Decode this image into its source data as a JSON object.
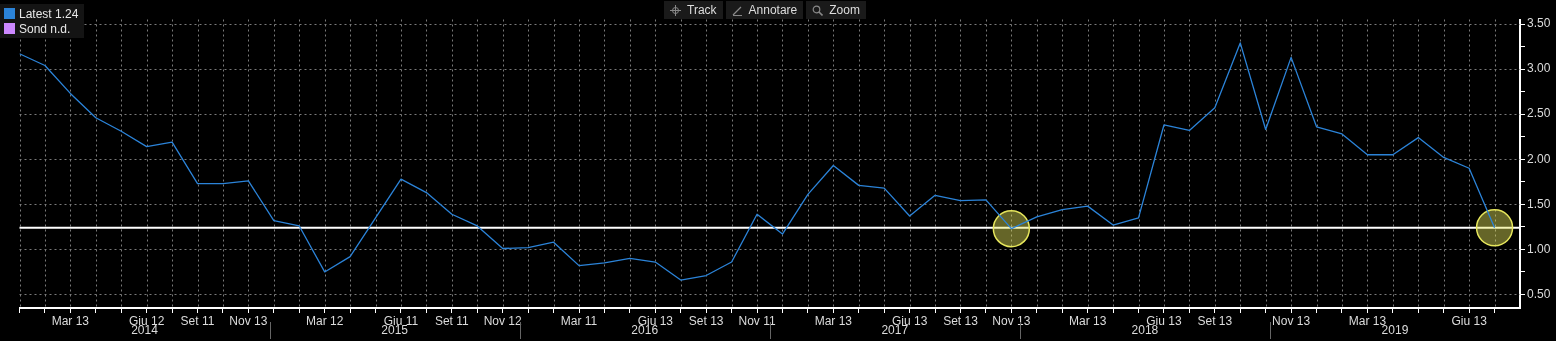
{
  "chart_data": {
    "type": "line",
    "categories": [
      null,
      null,
      "Mar 13",
      null,
      null,
      "Giu 12",
      null,
      "Set 11",
      null,
      "Nov 13",
      null,
      null,
      "Mar 12",
      null,
      null,
      "Giu 11",
      null,
      "Set 11",
      null,
      "Nov 12",
      null,
      null,
      "Mar 11",
      null,
      null,
      "Giu 13",
      null,
      "Set 13",
      null,
      "Nov 11",
      null,
      null,
      "Mar 13",
      null,
      null,
      "Giu 13",
      null,
      "Set 13",
      null,
      "Nov 13",
      null,
      null,
      "Mar 13",
      null,
      null,
      "Giu 13",
      null,
      "Set 13",
      null,
      null,
      "Nov 13",
      null,
      null,
      "Mar 13",
      null,
      null,
      null,
      "Giu 13",
      null
    ],
    "series": [
      {
        "name": "Latest 1.24",
        "color": "#2b83d8",
        "values": [
          3.17,
          3.04,
          2.73,
          2.46,
          2.31,
          2.14,
          2.19,
          1.73,
          1.73,
          1.76,
          1.32,
          1.26,
          0.75,
          0.92,
          1.35,
          1.78,
          1.63,
          1.39,
          1.26,
          1.01,
          1.02,
          1.08,
          0.82,
          0.85,
          0.9,
          0.86,
          0.66,
          0.71,
          0.86,
          1.39,
          1.17,
          1.61,
          1.93,
          1.71,
          1.68,
          1.37,
          1.6,
          1.54,
          1.55,
          1.23,
          1.36,
          1.44,
          1.48,
          1.27,
          1.35,
          2.38,
          2.32,
          2.57,
          3.29,
          2.33,
          3.13,
          2.36,
          2.28,
          2.05,
          2.05,
          2.24,
          2.02,
          1.9,
          1.24
        ]
      },
      {
        "name": "Sond n.d.",
        "color": "#cc88ff",
        "values": [
          null,
          null,
          null,
          null,
          null,
          null,
          null,
          null,
          null,
          null,
          null,
          null,
          null,
          null,
          null,
          null,
          null,
          null,
          null,
          null,
          null,
          null,
          null,
          null,
          null,
          null,
          null,
          null,
          null,
          null,
          null,
          null,
          null,
          null,
          null,
          null,
          null,
          null,
          null,
          null,
          null,
          null,
          null,
          null,
          null,
          null,
          null,
          null,
          null,
          null,
          null,
          null,
          null,
          null,
          null,
          null,
          null,
          null,
          null
        ]
      },
      {
        "type": "scatter",
        "marker": "circle",
        "color": "#e6e65c",
        "values": [
          null,
          null,
          null,
          null,
          null,
          null,
          null,
          null,
          null,
          null,
          null,
          null,
          null,
          null,
          null,
          null,
          null,
          null,
          null,
          null,
          null,
          null,
          null,
          null,
          null,
          null,
          null,
          null,
          null,
          null,
          null,
          null,
          null,
          null,
          null,
          null,
          null,
          null,
          null,
          1.23,
          null,
          null,
          null,
          null,
          null,
          null,
          null,
          null,
          null,
          null,
          null,
          null,
          null,
          null,
          null,
          null,
          null,
          null,
          1.24
        ]
      }
    ],
    "ylim": [
      0.35,
      3.55
    ],
    "yticks": [
      {
        "value": 0.5,
        "label": "0.50"
      },
      {
        "value": 0.75,
        "label": null
      },
      {
        "value": 1,
        "label": "1.00"
      },
      {
        "value": 1.25,
        "label": null
      },
      {
        "value": 1.5,
        "label": "1.50"
      },
      {
        "value": 1.75,
        "label": null
      },
      {
        "value": 2,
        "label": "2.00"
      },
      {
        "value": 2.25,
        "label": null
      },
      {
        "value": 2.5,
        "label": "2.50"
      },
      {
        "value": 2.75,
        "label": null
      },
      {
        "value": 3,
        "label": "3.00"
      },
      {
        "value": 3.25,
        "label": null
      },
      {
        "value": 3.5,
        "label": "3.50"
      }
    ],
    "grid": true,
    "legend": "top left",
    "marker": "none",
    "line_style": "solid",
    "ref_lines": [
      {
        "axis": "y",
        "value": 1.24,
        "color": "#ffffff"
      }
    ],
    "annotations": [
      "2014",
      "2015",
      "2016",
      "2017",
      "2018",
      "2019",
      "Track",
      "Annotare",
      "Zoom"
    ]
  }
}
